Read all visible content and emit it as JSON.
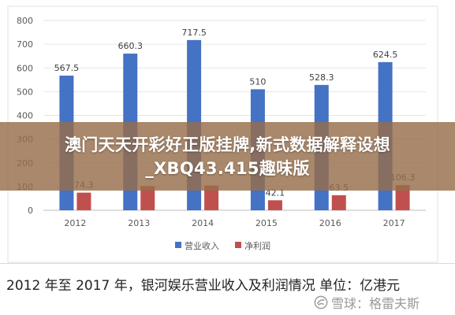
{
  "chart_data": {
    "type": "bar",
    "categories": [
      "2012",
      "2013",
      "2014",
      "2015",
      "2016",
      "2017"
    ],
    "series": [
      {
        "name": "营业收入",
        "values": [
          567.5,
          660.3,
          717.5,
          510,
          528.3,
          624.5
        ],
        "color": "#4472c4",
        "labels": [
          "567.5",
          "660.3",
          "717.5",
          "510",
          "528.3",
          "624.5"
        ]
      },
      {
        "name": "净利润",
        "values": [
          74.3,
          102,
          104,
          42.1,
          63.5,
          106.3
        ],
        "color": "#c0504d",
        "labels": [
          "74.3",
          "",
          "",
          "42.1",
          "63.5",
          "106.3"
        ]
      }
    ],
    "ylim": [
      0,
      800
    ],
    "yticks": [
      "0",
      "100",
      "200",
      "300",
      "400",
      "500",
      "600",
      "700",
      "800"
    ],
    "grid": true,
    "legend_position": "bottom"
  },
  "banner": {
    "line1": "澳门天天开彩好正版挂牌,新式数据解释设想",
    "line2": "_XBQ43.415趣味版"
  },
  "caption": "2012 年至 2017 年，银河娱乐营业收入及利润情况  单位：亿港元",
  "watermark": "雪球：格雷夫斯"
}
